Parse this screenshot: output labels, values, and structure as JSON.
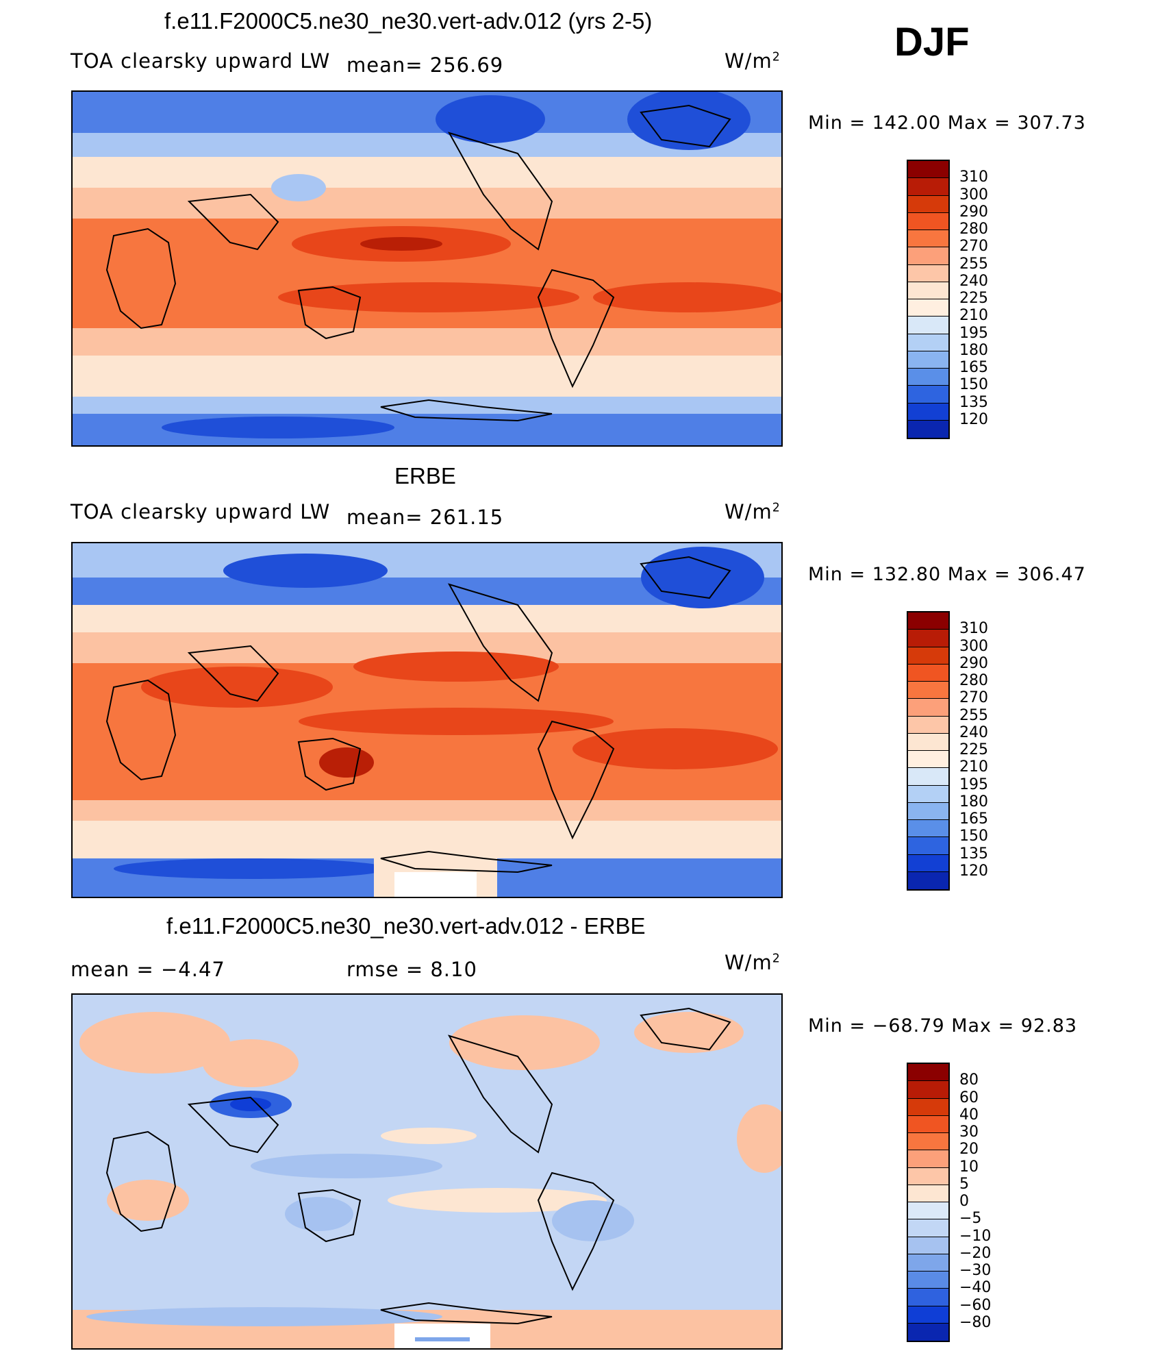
{
  "season": "DJF",
  "panels": [
    {
      "title": "f.e11.F2000C5.ne30_ne30.vert-adv.012 (yrs 2-5)",
      "left_text": "TOA clearsky upward LW",
      "mid_text": "mean=  256.69",
      "units": "W/m",
      "units_sup": "2",
      "minmax": "Min  =  142.00  Max  =  307.73",
      "map_kind": "model"
    },
    {
      "title": "ERBE",
      "left_text": "TOA clearsky upward LW",
      "mid_text": "mean=  261.15",
      "units": "W/m",
      "units_sup": "2",
      "minmax": "Min  =  132.80  Max  =  306.47",
      "map_kind": "obs"
    },
    {
      "title": "f.e11.F2000C5.ne30_ne30.vert-adv.012 - ERBE",
      "left_text": "mean  =   −4.47",
      "mid_text": "rmse  =     8.10",
      "units": "W/m",
      "units_sup": "2",
      "minmax": "Min  =  −68.79  Max  =    92.83",
      "map_kind": "diff"
    }
  ],
  "colorbars": {
    "field": {
      "labels": [
        "310",
        "300",
        "290",
        "280",
        "270",
        "255",
        "240",
        "225",
        "210",
        "195",
        "180",
        "165",
        "150",
        "135",
        "120"
      ],
      "colors": [
        "#8b0000",
        "#b81c06",
        "#d63a0a",
        "#f05522",
        "#f8763f",
        "#fca07a",
        "#fdc6a8",
        "#fde6d2",
        "#ffefe0",
        "#d9e8f8",
        "#b3d0f5",
        "#8ab4f0",
        "#5a8fe8",
        "#2e64e0",
        "#1240d4",
        "#0a26b0"
      ]
    },
    "diff": {
      "labels": [
        "80",
        "60",
        "40",
        "30",
        "20",
        "10",
        "5",
        "0",
        "−5",
        "−10",
        "−20",
        "−30",
        "−40",
        "−60",
        "−80"
      ],
      "colors": [
        "#8b0000",
        "#b81c06",
        "#d63a0a",
        "#f05522",
        "#f8763f",
        "#fca07a",
        "#fdc6a8",
        "#fde6d2",
        "#dbe9f8",
        "#c2d7f5",
        "#a6c2f0",
        "#7ea6ea",
        "#5a8be6",
        "#2f62df",
        "#0f3ed6",
        "#0a26b0"
      ]
    }
  },
  "map_palette": {
    "deep_blue": "#1f4fd8",
    "blue": "#4f7fe6",
    "light_blue": "#a9c6f3",
    "pale": "#fde6d2",
    "peach": "#fcc2a2",
    "orange": "#f7763f",
    "red_orange": "#e8461a",
    "dark_red": "#b91f06",
    "diff_base": "#c3d6f4",
    "land_line": "#000000"
  }
}
